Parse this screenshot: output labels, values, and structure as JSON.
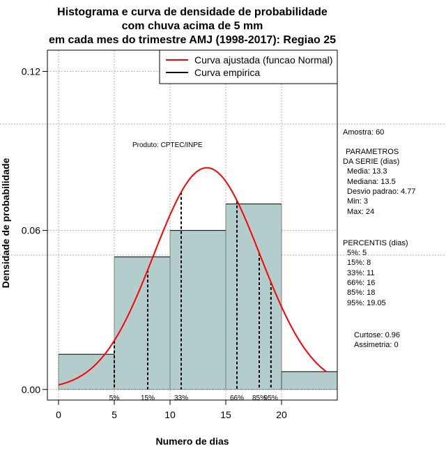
{
  "chart_data": {
    "type": "histogram",
    "title_lines": [
      "Histograma e curva de densidade de probabilidade",
      "com chuva acima de 5 mm",
      "em cada mes do trimestre AMJ (1998-2017): Regiao 25"
    ],
    "xlabel": "Numero de dias",
    "ylabel": "Densidade de probabilidade",
    "xlim": [
      -1,
      25
    ],
    "ylim": [
      -0.004,
      0.128
    ],
    "xticks": [
      "0",
      "5",
      "10",
      "15",
      "20"
    ],
    "yticks": [
      "0.00",
      "0.06",
      "0.12"
    ],
    "xtick_values": [
      0,
      5,
      10,
      15,
      20
    ],
    "ytick_values": [
      0.0,
      0.06,
      0.12
    ],
    "bins": [
      {
        "from": 0,
        "to": 5,
        "density": 0.0133
      },
      {
        "from": 5,
        "to": 10,
        "density": 0.05
      },
      {
        "from": 10,
        "to": 15,
        "density": 0.06
      },
      {
        "from": 15,
        "to": 20,
        "density": 0.07
      },
      {
        "from": 20,
        "to": 25,
        "density": 0.0067
      }
    ],
    "normal_curve": {
      "mean": 13.3,
      "sd": 4.77,
      "from": 0,
      "to": 24
    },
    "percentile_lines": [
      {
        "label": "5%",
        "x": 5
      },
      {
        "label": "15%",
        "x": 8
      },
      {
        "label": "33%",
        "x": 11
      },
      {
        "label": "66%",
        "x": 16
      },
      {
        "label": "85%",
        "x": 18
      },
      {
        "label": "95%",
        "x": 19.05
      }
    ],
    "legend": [
      {
        "label": "Curva ajustada (funcao Normal)",
        "color": "#ff0000"
      },
      {
        "label": "Curva empirica",
        "color": "#000000"
      }
    ],
    "product_label": "Produto: CPTEC/INPE",
    "bar_color": "#b3cccc",
    "curve_color": "#ff0000"
  },
  "stats": {
    "sample": "Amostra: 60",
    "params_title_1": "PARAMETROS",
    "params_title_2": "DA SERIE (dias)",
    "media": "Media: 13.3",
    "mediana": "Mediana: 13.5",
    "desvio": "Desvio padrao: 4.77",
    "min": "Min: 3",
    "max": "Max: 24",
    "percentis_title": "PERCENTIS (dias)",
    "p5": "5%: 5",
    "p15": "15%: 8",
    "p33": "33%: 11",
    "p66": "66%: 16",
    "p85": "85%: 18",
    "p95": "95%: 19.05",
    "curtose": "Curtose: 0.96",
    "assimetria": "Assimetria: 0"
  }
}
